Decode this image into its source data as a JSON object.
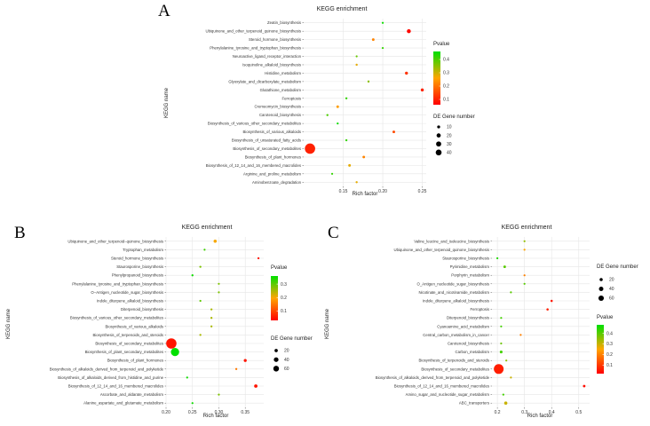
{
  "chart_data": [
    {
      "panel": "A",
      "type": "scatter",
      "title": "KEGG enrichment",
      "xlabel": "Rich factor",
      "ylabel": "KEGG name",
      "xlim": [
        0.1,
        0.255
      ],
      "xticks": [
        0.15,
        0.2,
        0.25
      ],
      "xtick_labels": [
        "0.15",
        "0.20",
        "0.25"
      ],
      "categories": [
        "Zeatin_biosynthesis",
        "Ubiquinone_and_other_terpenoid_quinone_biosynthesis",
        "Steroid_hormone_biosynthesis",
        "Phenylalanine_tyrosine_and_tryptophan_biosynthesis",
        "Neuroactive_ligand_receptor_interaction",
        "Isoquinoline_alkaloid_biosynthesis",
        "Histidine_metabolism",
        "Glyoxylate_and_dicarboxylate_metabolism",
        "Glutathione_metabolism",
        "Ferroptosis",
        "Cremeomycin_biosynthesis",
        "Carotenoid_biosynthesis",
        "Biosynthesis_of_various_other_secondary_metabolites",
        "Biosynthesis_of_various_alkaloids",
        "Biosynthesis_of_unsaturated_fatty_acids",
        "Biosynthesis_of_secondary_metabolites",
        "Biosynthesis_of_plant_hormones",
        "Biosynthesis_of_12_14_and_16_membered_macrolides",
        "Arginine_and_proline_metabolism",
        "Aminobenzoate_degradation"
      ],
      "rich_factor": [
        0.2,
        0.233,
        0.188,
        0.2,
        0.167,
        0.167,
        0.23,
        0.182,
        0.25,
        0.154,
        0.143,
        0.13,
        0.143,
        0.214,
        0.154,
        0.108,
        0.176,
        0.158,
        0.136,
        0.167
      ],
      "gene_number": [
        1,
        7,
        3,
        1,
        1,
        2,
        4,
        2,
        4,
        2,
        3,
        2,
        1,
        3,
        2,
        47,
        3,
        3,
        1,
        2
      ],
      "pvalue": [
        0.45,
        0.07,
        0.22,
        0.42,
        0.38,
        0.28,
        0.12,
        0.35,
        0.1,
        0.42,
        0.25,
        0.4,
        0.45,
        0.15,
        0.42,
        0.1,
        0.22,
        0.28,
        0.42,
        0.28
      ],
      "size_legend": {
        "title": "DE Gene number",
        "values": [
          10,
          20,
          30,
          40
        ]
      },
      "color_legend": {
        "title": "Pvalue",
        "min": 0.06,
        "max": 0.46,
        "ticks": [
          0.4,
          0.3,
          0.2,
          0.1
        ]
      }
    },
    {
      "panel": "B",
      "type": "scatter",
      "title": "KEGG enrichment",
      "xlabel": "Rich factor",
      "ylabel": "KEGG name",
      "xlim": [
        0.2,
        0.385
      ],
      "xticks": [
        0.2,
        0.25,
        0.3,
        0.35
      ],
      "xtick_labels": [
        "0.20",
        "0.25",
        "0.30",
        "0.35"
      ],
      "categories": [
        "Ubiquinone_and_other_terpenoid−quinone_biosynthesis",
        "Tryptophan_metabolism",
        "Steroid_hormone_biosynthesis",
        "Staurosporine_biosynthesis",
        "Phenylpropanoid_biosynthesis",
        "Phenylalanine_tyrosine_and_tryptophan_biosynthesis",
        "O−Antigen_nucleotide_sugar_biosynthesis",
        "Indole_diterpene_alkaloid_biosynthesis",
        "Diterpenoid_biosynthesis",
        "Biosynthesis_of_various_other_secondary_metabolites",
        "Biosynthesis_of_various_alkaloids",
        "Biosynthesis_of_terpenoids_and_steroids",
        "Biosynthesis_of_secondary_metabolites",
        "Biosynthesis_of_plant_secondary_metabolites",
        "Biosynthesis_of_plant_hormones",
        "Biosynthesis_of_alkaloids_derived_from_terpenoid_and_polyketide",
        "Biosynthesis_of_alkaloids_derived_from_histidine_and_purine",
        "Biosynthesis_of_12_14_and_16_membered_macrolides",
        "Ascorbate_and_aldarate_metabolism",
        "Alanine_aspartate_and_glutamate_metabolism"
      ],
      "rich_factor": [
        0.293,
        0.273,
        0.375,
        0.265,
        0.25,
        0.3,
        0.3,
        0.265,
        0.286,
        0.286,
        0.286,
        0.265,
        0.21,
        0.217,
        0.35,
        0.333,
        0.24,
        0.37,
        0.3,
        0.25
      ],
      "gene_number": [
        7,
        2,
        3,
        3,
        3,
        1,
        1,
        2,
        3,
        3,
        3,
        3,
        75,
        48,
        6,
        3,
        2,
        8,
        1,
        1
      ],
      "pvalue": [
        0.2,
        0.32,
        0.05,
        0.28,
        0.35,
        0.28,
        0.28,
        0.3,
        0.25,
        0.25,
        0.25,
        0.25,
        0.05,
        0.38,
        0.05,
        0.15,
        0.35,
        0.05,
        0.28,
        0.35
      ],
      "size_legend": {
        "title": "DE Gene number",
        "values": [
          20,
          40,
          60
        ]
      },
      "color_legend": {
        "title": "Pvalue",
        "min": 0.03,
        "max": 0.36,
        "ticks": [
          0.3,
          0.2,
          0.1
        ]
      }
    },
    {
      "panel": "C",
      "type": "scatter",
      "title": "KEGG enrichment",
      "xlabel": "Rich factor",
      "ylabel": "KEGG name",
      "xlim": [
        0.18,
        0.54
      ],
      "xticks": [
        0.2,
        0.3,
        0.4,
        0.5
      ],
      "xtick_labels": [
        "0.2",
        "0.3",
        "0.4",
        "0.5"
      ],
      "categories": [
        "Valine_leucine_and_isoleucine_biosynthesis",
        "Ubiquinone_and_other_terpenoid_quinone_biosynthesis",
        "Staurosporine_biosynthesis",
        "Pyrimidine_metabolism",
        "Porphyrin_metabolism",
        "O_Antigen_nucleotide_sugar_biosynthesis",
        "Nicotinate_and_nicotinamide_metabolism",
        "Indole_diterpene_alkaloid_biosynthesis",
        "Ferroptosis",
        "Diterpenoid_biosynthesis",
        "Cyanoamino_acid_metabolism",
        "Central_carbon_metabolism_in_cancer",
        "Carotenoid_biosynthesis",
        "Carbon_metabolism",
        "Biosynthesis_of_terpenoids_and_steroids",
        "Biosynthesis_of_secondary_metabolites",
        "Biosynthesis_of_alkaloids_derived_from_terpenoid_and_polyketide",
        "Biosynthesis_of_12_14_and_16_membered_macrolides",
        "Amino_sugar_and_nucleotide_sugar_metabolism",
        "ABC_transporters"
      ],
      "rich_factor": [
        0.3,
        0.3,
        0.2,
        0.227,
        0.3,
        0.3,
        0.25,
        0.4,
        0.385,
        0.214,
        0.214,
        0.286,
        0.214,
        0.214,
        0.233,
        0.205,
        0.25,
        0.52,
        0.222,
        0.231
      ],
      "gene_number": [
        1,
        3,
        1,
        5,
        3,
        1,
        1,
        4,
        4,
        2,
        2,
        2,
        3,
        6,
        3,
        75,
        1,
        5,
        3,
        8
      ],
      "pvalue": [
        0.35,
        0.25,
        0.45,
        0.4,
        0.2,
        0.4,
        0.4,
        0.05,
        0.06,
        0.42,
        0.42,
        0.2,
        0.38,
        0.42,
        0.35,
        0.06,
        0.3,
        0.04,
        0.42,
        0.3
      ],
      "size_legend": {
        "title": "DE Gene number",
        "values": [
          20,
          40,
          60
        ]
      },
      "color_legend": {
        "title": "Pvalue",
        "min": 0.02,
        "max": 0.48,
        "ticks": [
          0.4,
          0.3,
          0.2,
          0.1
        ]
      }
    }
  ]
}
